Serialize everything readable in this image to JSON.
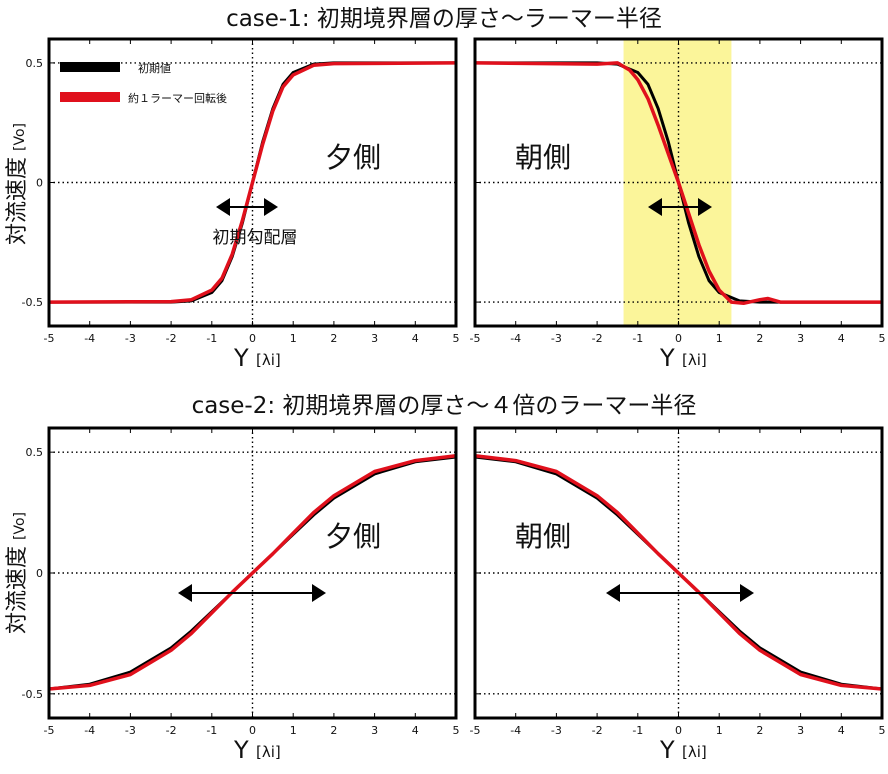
{
  "figure": {
    "case1_title": "case-1: 初期境界層の厚さ〜ラーマー半径",
    "case2_title": "case-2: 初期境界層の厚さ〜４倍のラーマー半径"
  },
  "common": {
    "ylabel_main": "対流速度",
    "ylabel_unit": "[Vo]",
    "xlabel_main": "Y",
    "xlabel_unit": "[λi]",
    "colors": {
      "initial": "#000000",
      "rotated": "#e0101c",
      "highlight": "#fbf59a"
    }
  },
  "legend": {
    "initial_label": "初期値",
    "rotated_label": "約１ラーマー回転後"
  },
  "chart_data": [
    {
      "type": "line",
      "panel": "case1-left",
      "annotation": "夕側",
      "arrow_label": "初期勾配層",
      "xlim": [
        -5,
        5
      ],
      "ylim": [
        -0.6,
        0.6
      ],
      "xticks": [
        "-5",
        "-4",
        "-3",
        "-2",
        "-1",
        "0",
        "1",
        "2",
        "3",
        "4",
        "5"
      ],
      "yticks": [
        "0.5",
        "0",
        "-0.5"
      ],
      "series": [
        {
          "name": "初期値",
          "x": [
            -5,
            -2,
            -1.5,
            -1,
            -0.75,
            -0.5,
            -0.25,
            0,
            0.25,
            0.5,
            0.75,
            1,
            1.5,
            2,
            5
          ],
          "y": [
            -0.5,
            -0.5,
            -0.495,
            -0.46,
            -0.41,
            -0.31,
            -0.17,
            0,
            0.17,
            0.31,
            0.41,
            0.46,
            0.495,
            0.5,
            0.5
          ]
        },
        {
          "name": "約１ラーマー回転後",
          "x": [
            -5,
            -2,
            -1.5,
            -1,
            -0.75,
            -0.5,
            -0.25,
            0,
            0.25,
            0.5,
            0.75,
            1,
            1.5,
            2,
            5
          ],
          "y": [
            -0.5,
            -0.498,
            -0.49,
            -0.45,
            -0.4,
            -0.3,
            -0.16,
            0,
            0.16,
            0.3,
            0.4,
            0.45,
            0.49,
            0.497,
            0.5
          ]
        }
      ]
    },
    {
      "type": "line",
      "panel": "case1-right",
      "annotation": "朝側",
      "xlim": [
        -5,
        5
      ],
      "ylim": [
        -0.6,
        0.6
      ],
      "xticks": [
        "-5",
        "-4",
        "-3",
        "-2",
        "-1",
        "0",
        "1",
        "2",
        "3",
        "4",
        "5"
      ],
      "yticks": [
        "0.5",
        "0",
        "-0.5"
      ],
      "highlight_x": [
        -1.35,
        1.3
      ],
      "series": [
        {
          "name": "初期値",
          "x": [
            -5,
            -2,
            -1.5,
            -1,
            -0.75,
            -0.5,
            -0.25,
            0,
            0.25,
            0.5,
            0.75,
            1,
            1.5,
            2,
            5
          ],
          "y": [
            0.5,
            0.5,
            0.495,
            0.46,
            0.41,
            0.31,
            0.17,
            0,
            -0.17,
            -0.31,
            -0.41,
            -0.46,
            -0.495,
            -0.5,
            -0.5
          ]
        },
        {
          "name": "約１ラーマー回転後",
          "x": [
            -5,
            -2,
            -1.5,
            -1.2,
            -1,
            -0.75,
            -0.5,
            -0.25,
            0,
            0.25,
            0.5,
            0.75,
            1,
            1.3,
            1.6,
            2,
            2.2,
            2.5,
            3,
            5
          ],
          "y": [
            0.5,
            0.495,
            0.5,
            0.47,
            0.43,
            0.35,
            0.24,
            0.12,
            0,
            -0.13,
            -0.26,
            -0.37,
            -0.45,
            -0.5,
            -0.505,
            -0.49,
            -0.485,
            -0.5,
            -0.5,
            -0.5
          ]
        }
      ]
    },
    {
      "type": "line",
      "panel": "case2-left",
      "annotation": "夕側",
      "xlim": [
        -5,
        5
      ],
      "ylim": [
        -0.6,
        0.6
      ],
      "xticks": [
        "-5",
        "-4",
        "-3",
        "-2",
        "-1",
        "0",
        "1",
        "2",
        "3",
        "4",
        "5"
      ],
      "yticks": [
        "0.5",
        "0",
        "-0.5"
      ],
      "series": [
        {
          "name": "初期値",
          "x": [
            -5,
            -4,
            -3,
            -2,
            -1.5,
            -1,
            -0.5,
            0,
            0.5,
            1,
            1.5,
            2,
            3,
            4,
            5
          ],
          "y": [
            -0.48,
            -0.46,
            -0.41,
            -0.31,
            -0.24,
            -0.16,
            -0.08,
            0,
            0.08,
            0.16,
            0.24,
            0.31,
            0.41,
            0.46,
            0.48
          ]
        },
        {
          "name": "約１ラーマー回転後",
          "x": [
            -5,
            -4,
            -3,
            -2,
            -1.5,
            -1,
            -0.5,
            0,
            0.5,
            1,
            1.5,
            2,
            3,
            4,
            5
          ],
          "y": [
            -0.48,
            -0.465,
            -0.42,
            -0.32,
            -0.25,
            -0.165,
            -0.08,
            0,
            0.08,
            0.165,
            0.25,
            0.32,
            0.42,
            0.465,
            0.485
          ]
        }
      ]
    },
    {
      "type": "line",
      "panel": "case2-right",
      "annotation": "朝側",
      "xlim": [
        -5,
        5
      ],
      "ylim": [
        -0.6,
        0.6
      ],
      "xticks": [
        "-5",
        "-4",
        "-3",
        "-2",
        "-1",
        "0",
        "1",
        "2",
        "3",
        "4",
        "5"
      ],
      "yticks": [
        "0.5",
        "0",
        "-0.5"
      ],
      "series": [
        {
          "name": "初期値",
          "x": [
            -5,
            -4,
            -3,
            -2,
            -1.5,
            -1,
            -0.5,
            0,
            0.5,
            1,
            1.5,
            2,
            3,
            4,
            5
          ],
          "y": [
            0.48,
            0.46,
            0.41,
            0.31,
            0.24,
            0.16,
            0.08,
            0,
            -0.08,
            -0.16,
            -0.24,
            -0.31,
            -0.41,
            -0.46,
            -0.48
          ]
        },
        {
          "name": "約１ラーマー回転後",
          "x": [
            -5,
            -4,
            -3,
            -2,
            -1.5,
            -1,
            -0.5,
            0,
            0.5,
            1,
            1.5,
            2,
            3,
            4,
            5
          ],
          "y": [
            0.485,
            0.465,
            0.42,
            0.32,
            0.25,
            0.165,
            0.08,
            0,
            -0.08,
            -0.165,
            -0.25,
            -0.32,
            -0.42,
            -0.465,
            -0.48
          ]
        }
      ]
    }
  ]
}
